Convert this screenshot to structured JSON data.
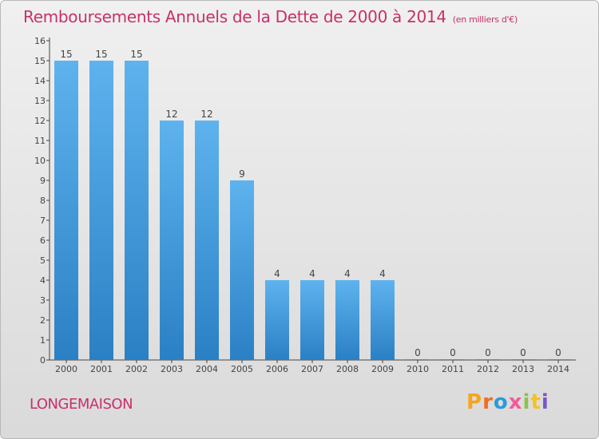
{
  "title": "Remboursements Annuels de la Dette de 2000 à 2014",
  "subtitle": "(en milliers d'€)",
  "commune": "LONGEMAISON",
  "logo_text": "Proxiti",
  "colors": {
    "title": "#c8306a",
    "bar_light": "#5eb3ee",
    "bar_dark": "#2a80c4",
    "logo": [
      "#f5a51f",
      "#f06d1d",
      "#2d9ad8",
      "#f25c9b",
      "#8bc34a",
      "#f5c21f",
      "#7a57c8"
    ]
  },
  "chart_data": {
    "type": "bar",
    "categories": [
      "2000",
      "2001",
      "2002",
      "2003",
      "2004",
      "2005",
      "2006",
      "2007",
      "2008",
      "2009",
      "2010",
      "2011",
      "2012",
      "2013",
      "2014"
    ],
    "values": [
      15,
      15,
      15,
      12,
      12,
      9,
      4,
      4,
      4,
      4,
      0,
      0,
      0,
      0,
      0
    ],
    "data_labels": [
      "15",
      "15",
      "15",
      "12",
      "12",
      "9",
      "4",
      "4",
      "4",
      "4",
      "0",
      "0",
      "0",
      "0",
      "0"
    ],
    "ylim": [
      0,
      16
    ],
    "yticks": [
      0,
      1,
      2,
      3,
      4,
      5,
      6,
      7,
      8,
      9,
      10,
      11,
      12,
      13,
      14,
      15,
      16
    ],
    "xlabel": "",
    "ylabel": "",
    "grid": false,
    "legend": false
  }
}
